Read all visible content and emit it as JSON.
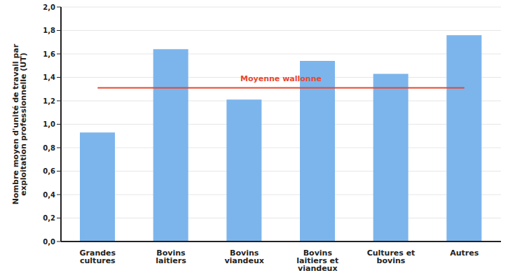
{
  "chart_data": {
    "type": "bar",
    "categories": [
      "Grandes cultures",
      "Bovins laitiers",
      "Bovins viandeux",
      "Bovins laitiers et viandeux",
      "Cultures et bovins",
      "Autres"
    ],
    "values": [
      0.93,
      1.64,
      1.21,
      1.54,
      1.43,
      1.76
    ],
    "color": "#7cb5ec",
    "ylabel": "Nombre moyen d'unité de travail par exploitation professionnelle (UT)",
    "ylim": [
      0,
      2
    ],
    "yticks": [
      {
        "value": 0,
        "label": "0,0"
      },
      {
        "value": 0.2,
        "label": "0,2"
      },
      {
        "value": 0.4,
        "label": "0,4"
      },
      {
        "value": 0.6,
        "label": "0,6"
      },
      {
        "value": 0.8,
        "label": "0,8"
      },
      {
        "value": 1,
        "label": "1,0"
      },
      {
        "value": 1.2,
        "label": "1,2"
      },
      {
        "value": 1.4,
        "label": "1,4"
      },
      {
        "value": 1.6,
        "label": "1,6"
      },
      {
        "value": 1.8,
        "label": "1,8"
      },
      {
        "value": 2,
        "label": "2,0"
      }
    ],
    "grid": true,
    "reference_line": {
      "value": 1.31,
      "label": "Moyenne wallonne",
      "color": "#e8472e"
    }
  }
}
